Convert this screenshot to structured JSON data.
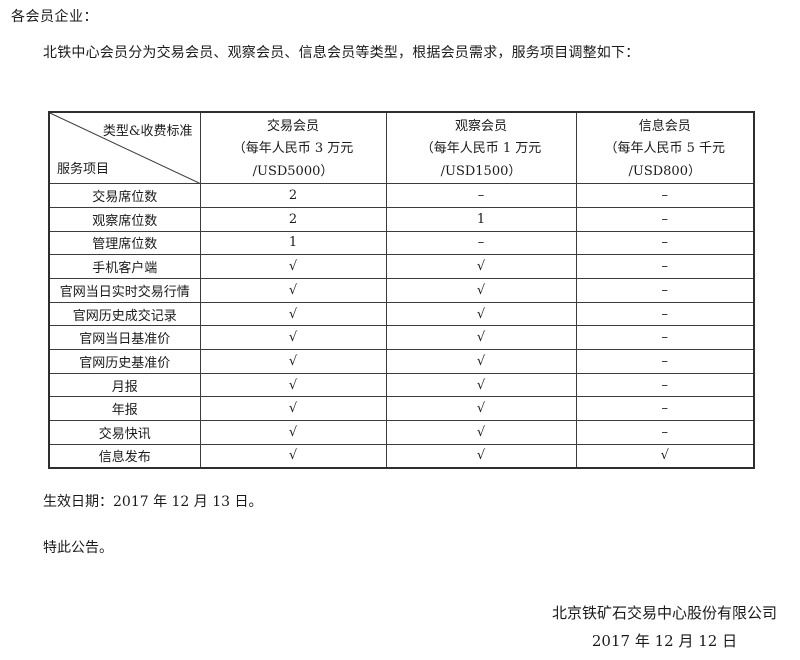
{
  "page": {
    "salutation": "各会员企业：",
    "intro": "北铁中心会员分为交易会员、观察会员、信息会员等类型，根据会员需求，服务项目调整如下：",
    "effective_date_line": "生效日期：2017 年 12 月 13 日。",
    "notice_line": "特此公告。",
    "signature": {
      "company": "北京铁矿石交易中心股份有限公司",
      "date": "2017 年 12 月 12 日"
    }
  },
  "table": {
    "corner": {
      "top_right": "类型&收费标准",
      "bottom_left": "服务项目"
    },
    "columns": [
      {
        "name": "交易会员",
        "fee_cny": "（每年人民币 3 万元",
        "fee_usd": "/USD5000）"
      },
      {
        "name": "观察会员",
        "fee_cny": "（每年人民币 1 万元",
        "fee_usd": "/USD1500）"
      },
      {
        "name": "信息会员",
        "fee_cny": "（每年人民币 5 千元",
        "fee_usd": "/USD800）"
      }
    ],
    "rows": [
      {
        "label": "交易席位数",
        "values": [
          "2",
          "–",
          "–"
        ]
      },
      {
        "label": "观察席位数",
        "values": [
          "2",
          "1",
          "–"
        ]
      },
      {
        "label": "管理席位数",
        "values": [
          "1",
          "–",
          "–"
        ]
      },
      {
        "label": "手机客户端",
        "values": [
          "√",
          "√",
          "–"
        ]
      },
      {
        "label": "官网当日实时交易行情",
        "values": [
          "√",
          "√",
          "–"
        ]
      },
      {
        "label": "官网历史成交记录",
        "values": [
          "√",
          "√",
          "–"
        ]
      },
      {
        "label": "官网当日基准价",
        "values": [
          "√",
          "√",
          "–"
        ]
      },
      {
        "label": "官网历史基准价",
        "values": [
          "√",
          "√",
          "–"
        ]
      },
      {
        "label": "月报",
        "values": [
          "√",
          "√",
          "–"
        ]
      },
      {
        "label": "年报",
        "values": [
          "√",
          "√",
          "–"
        ]
      },
      {
        "label": "交易快讯",
        "values": [
          "√",
          "√",
          "–"
        ]
      },
      {
        "label": "信息发布",
        "values": [
          "√",
          "√",
          "√"
        ]
      }
    ]
  },
  "colors": {
    "text": "#1a1a1a",
    "border": "#3c3c3c",
    "background": "#ffffff"
  }
}
